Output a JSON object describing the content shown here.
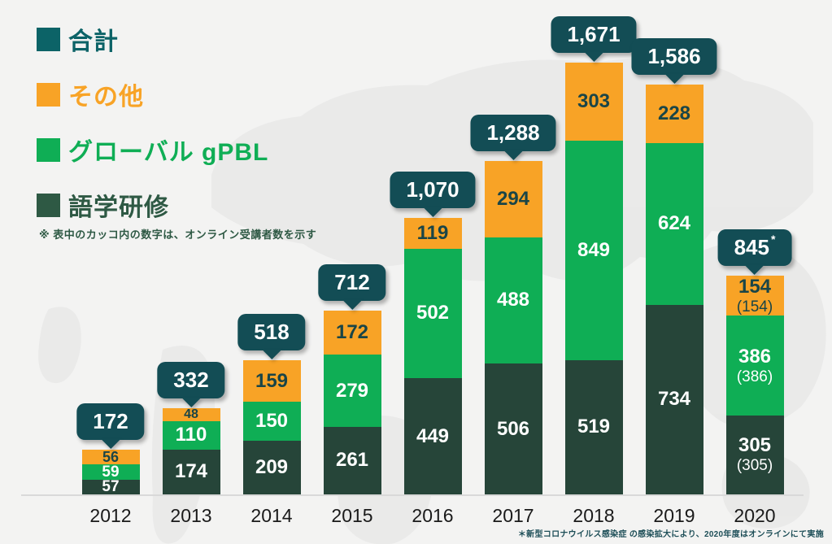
{
  "page": {
    "background_color": "#f3f3f2",
    "note": "※ 表中のカッコ内の数字は、オンライン受講者数を示す",
    "footnote": "＊新型コロナウイルス感染症 の感染拡大により、2020年度はオンラインにて実施"
  },
  "legend": {
    "items": [
      {
        "label": "合計",
        "color": "#0c6367"
      },
      {
        "label": "その他",
        "color": "#f8a326"
      },
      {
        "label": "グローバル gPBL",
        "color": "#0fae55"
      },
      {
        "label": "語学研修",
        "color": "#2e5944"
      }
    ]
  },
  "chart_data": {
    "type": "bar",
    "stacked": true,
    "title": "",
    "xlabel": "",
    "ylabel": "",
    "grid": false,
    "legend_position": "top-left",
    "ylim": [
      0,
      1750
    ],
    "categories": [
      "2012",
      "2013",
      "2014",
      "2015",
      "2016",
      "2017",
      "2018",
      "2019",
      "2020"
    ],
    "series": [
      {
        "name": "語学研修",
        "color": "#264539",
        "label_color": "#ffffff",
        "values": [
          57,
          174,
          209,
          261,
          449,
          506,
          519,
          734,
          305
        ],
        "online_labels": [
          null,
          null,
          null,
          null,
          null,
          null,
          null,
          null,
          "(305)"
        ]
      },
      {
        "name": "グローバル gPBL",
        "color": "#0fae55",
        "label_color": "#ffffff",
        "values": [
          59,
          110,
          150,
          279,
          502,
          488,
          849,
          624,
          386
        ],
        "online_labels": [
          null,
          null,
          null,
          null,
          null,
          null,
          null,
          null,
          "(386)"
        ]
      },
      {
        "name": "その他",
        "color": "#f8a326",
        "label_color": "#1a4547",
        "values": [
          56,
          48,
          159,
          172,
          119,
          294,
          303,
          228,
          154
        ],
        "online_labels": [
          null,
          null,
          null,
          null,
          null,
          null,
          null,
          null,
          "(154)"
        ]
      }
    ],
    "totals": {
      "values": [
        172,
        332,
        518,
        712,
        1070,
        1288,
        1671,
        1586,
        845
      ],
      "labels": [
        "172",
        "332",
        "518",
        "712",
        "1,070",
        "1,288",
        "1,671",
        "1,586",
        "845"
      ],
      "asterisk_index": 8,
      "asterisk_symbol": "*",
      "bubble_color": "#134d55",
      "text_color": "#ffffff"
    }
  }
}
